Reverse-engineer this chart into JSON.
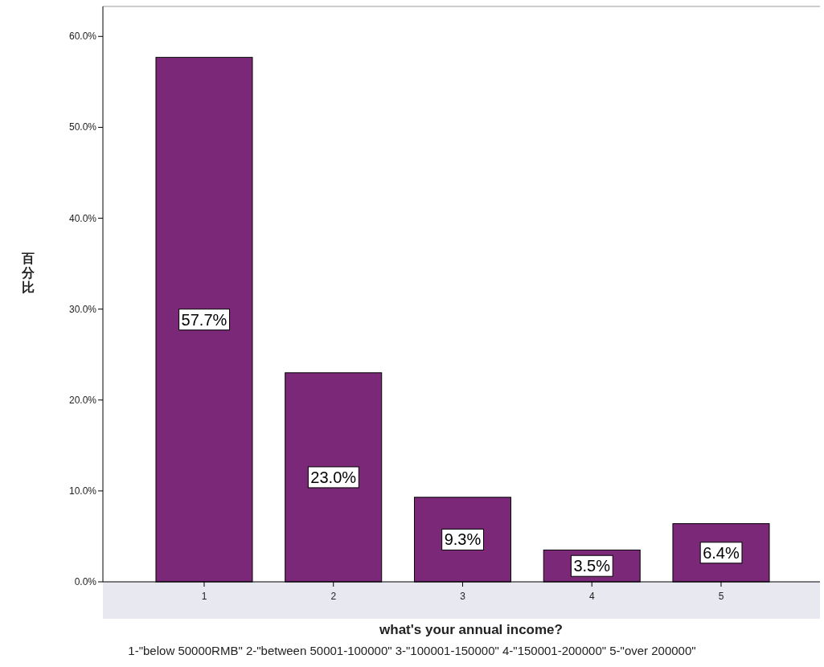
{
  "chart_data": {
    "type": "bar",
    "xlabel": "what's your annual income?",
    "ylabel": "百分比",
    "categories": [
      "1",
      "2",
      "3",
      "4",
      "5"
    ],
    "values": [
      57.7,
      23.0,
      9.3,
      3.5,
      6.4
    ],
    "value_labels": [
      "57.7%",
      "23.0%",
      "9.3%",
      "3.5%",
      "6.4%"
    ],
    "color": "#7b2878",
    "ylim": [
      0,
      63.3
    ],
    "yticks": [
      {
        "value": 0,
        "label": "0.0%"
      },
      {
        "value": 10,
        "label": "10.0%"
      },
      {
        "value": 20,
        "label": "20.0%"
      },
      {
        "value": 30,
        "label": "30.0%"
      },
      {
        "value": 40,
        "label": "40.0%"
      },
      {
        "value": 50,
        "label": "50.0%"
      },
      {
        "value": 60,
        "label": "60.0%"
      }
    ],
    "grid": false,
    "annotations": [
      "1-\"below 50000RMB\" 2-\"between 50001-100000\" 3-\"100001-150000\" 4-\"150001-200000\" 5-\"over 200000\""
    ]
  }
}
